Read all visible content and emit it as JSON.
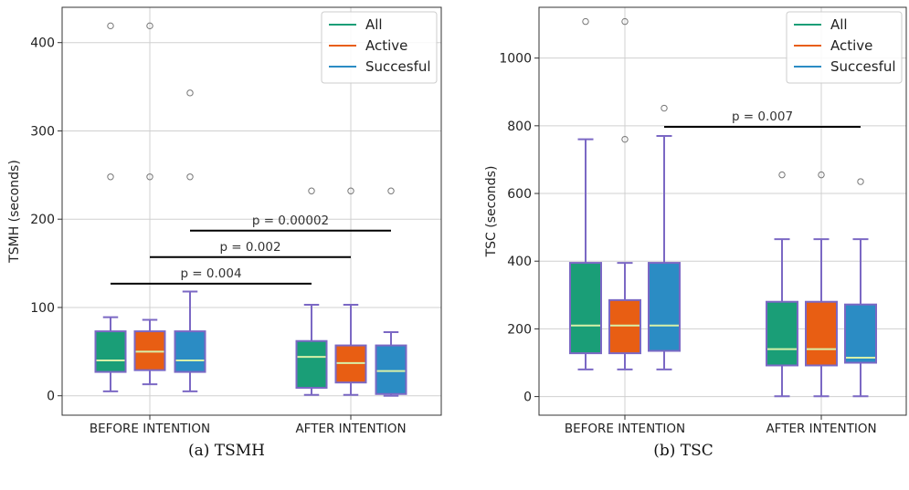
{
  "figure": {
    "captions": [
      "(a) TSMH",
      "(b) TSC"
    ]
  },
  "chart_data": [
    {
      "type": "box",
      "ylabel": "TSMH (seconds)",
      "ylim": [
        -22,
        440
      ],
      "yticks": [
        0,
        100,
        200,
        300,
        400
      ],
      "categories": [
        "BEFORE INTENTION",
        "AFTER INTENTION"
      ],
      "grid": true,
      "legend": {
        "placement": "top-right",
        "entries": [
          "All",
          "Active",
          "Succesful"
        ]
      },
      "series": [
        {
          "name": "All",
          "color": "#1a9e77",
          "boxes": [
            {
              "whislo": 5,
              "q1": 27,
              "med": 40,
              "q3": 73,
              "whishi": 89,
              "fliers": [
                248,
                419
              ]
            },
            {
              "whislo": 1,
              "q1": 9,
              "med": 44,
              "q3": 62,
              "whishi": 103,
              "fliers": [
                232
              ]
            }
          ]
        },
        {
          "name": "Active",
          "color": "#e85e13",
          "boxes": [
            {
              "whislo": 13,
              "q1": 29,
              "med": 50,
              "q3": 73,
              "whishi": 86,
              "fliers": [
                248,
                419
              ]
            },
            {
              "whislo": 1,
              "q1": 15,
              "med": 37,
              "q3": 57,
              "whishi": 103,
              "fliers": [
                232
              ]
            }
          ]
        },
        {
          "name": "Succesful",
          "color": "#2b8cc4",
          "boxes": [
            {
              "whislo": 5,
              "q1": 27,
              "med": 40,
              "q3": 73,
              "whishi": 118,
              "fliers": [
                248,
                343
              ]
            },
            {
              "whislo": 0,
              "q1": 2,
              "med": 28,
              "q3": 57,
              "whishi": 72,
              "fliers": [
                232
              ]
            }
          ]
        }
      ],
      "annotations": [
        {
          "text": "p = 0.004",
          "y": 127,
          "from": [
            "BEFORE INTENTION",
            "All"
          ],
          "to": [
            "AFTER INTENTION",
            "All"
          ]
        },
        {
          "text": "p = 0.002",
          "y": 157,
          "from": [
            "BEFORE INTENTION",
            "Active"
          ],
          "to": [
            "AFTER INTENTION",
            "Active"
          ]
        },
        {
          "text": "p = 0.00002",
          "y": 187,
          "from": [
            "BEFORE INTENTION",
            "Succesful"
          ],
          "to": [
            "AFTER INTENTION",
            "Succesful"
          ]
        }
      ]
    },
    {
      "type": "box",
      "ylabel": "TSC (seconds)",
      "ylim": [
        -55,
        1150
      ],
      "yticks": [
        0,
        200,
        400,
        600,
        800,
        1000
      ],
      "categories": [
        "BEFORE INTENTION",
        "AFTER INTENTION"
      ],
      "grid": true,
      "legend": {
        "placement": "top-right",
        "entries": [
          "All",
          "Active",
          "Succesful"
        ]
      },
      "series": [
        {
          "name": "All",
          "color": "#1a9e77",
          "boxes": [
            {
              "whislo": 80,
              "q1": 128,
              "med": 210,
              "q3": 395,
              "whishi": 760,
              "fliers": [
                1108
              ]
            },
            {
              "whislo": 1,
              "q1": 92,
              "med": 140,
              "q3": 280,
              "whishi": 465,
              "fliers": [
                655
              ]
            }
          ]
        },
        {
          "name": "Active",
          "color": "#e85e13",
          "boxes": [
            {
              "whislo": 80,
              "q1": 128,
              "med": 210,
              "q3": 285,
              "whishi": 395,
              "fliers": [
                760,
                1108
              ]
            },
            {
              "whislo": 1,
              "q1": 92,
              "med": 140,
              "q3": 280,
              "whishi": 465,
              "fliers": [
                655
              ]
            }
          ]
        },
        {
          "name": "Succesful",
          "color": "#2b8cc4",
          "boxes": [
            {
              "whislo": 80,
              "q1": 135,
              "med": 210,
              "q3": 395,
              "whishi": 770,
              "fliers": [
                852
              ]
            },
            {
              "whislo": 1,
              "q1": 100,
              "med": 115,
              "q3": 272,
              "whishi": 465,
              "fliers": [
                635
              ]
            }
          ]
        }
      ],
      "annotations": [
        {
          "text": "p = 0.007",
          "y": 797,
          "from": [
            "BEFORE INTENTION",
            "Succesful"
          ],
          "to": [
            "AFTER INTENTION",
            "Succesful"
          ]
        }
      ]
    }
  ]
}
